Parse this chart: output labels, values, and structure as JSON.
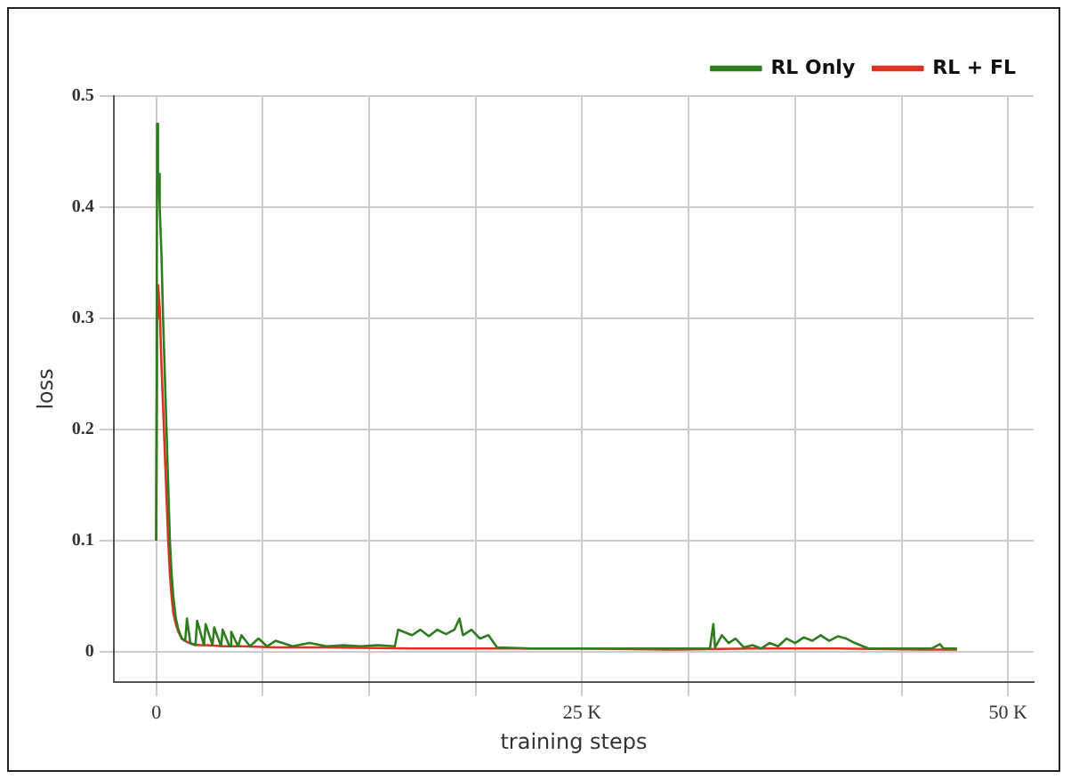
{
  "chart_data": {
    "type": "line",
    "xlabel": "training steps",
    "ylabel": "loss",
    "xlim": [
      -2500,
      51500
    ],
    "ylim": [
      -0.027,
      0.5
    ],
    "xticks": [
      0,
      {
        "value": 6250,
        "label": null
      },
      {
        "value": 12500,
        "label": null
      },
      {
        "value": 18750,
        "label": null
      },
      {
        "value": 25000,
        "label": "25 K"
      },
      {
        "value": 31250,
        "label": null
      },
      {
        "value": 37500,
        "label": null
      },
      {
        "value": 43750,
        "label": null
      },
      {
        "value": 50000,
        "label": "50 K"
      }
    ],
    "yticks": [
      0,
      0.1,
      0.2,
      0.3,
      0.4,
      0.5
    ],
    "grid": true,
    "legend": "top right",
    "marker": "none",
    "line_style": "solid",
    "series": [
      {
        "name": "RL Only",
        "color": "#2e7d1e",
        "x": [
          0,
          50,
          100,
          150,
          200,
          300,
          400,
          500,
          600,
          700,
          800,
          900,
          1000,
          1150,
          1300,
          1500,
          1700,
          1800,
          2000,
          2300,
          2400,
          2800,
          2900,
          3300,
          3400,
          3800,
          3900,
          4300,
          4400,
          4800,
          5000,
          5500,
          6000,
          6500,
          7000,
          8000,
          9000,
          10000,
          11000,
          12000,
          13000,
          14000,
          14200,
          15000,
          15500,
          16000,
          16500,
          17000,
          17500,
          17800,
          18000,
          18500,
          19000,
          19500,
          20000,
          22000,
          25000,
          28000,
          31000,
          32500,
          32700,
          32800,
          33200,
          33600,
          34000,
          34500,
          35000,
          35500,
          36000,
          36500,
          37000,
          37500,
          38000,
          38500,
          39000,
          39500,
          40000,
          40500,
          41000,
          41800,
          42500,
          44000,
          45500,
          46000,
          46200,
          47000
        ],
        "values": [
          0.1,
          0.475,
          0.42,
          0.43,
          0.4,
          0.36,
          0.3,
          0.25,
          0.2,
          0.15,
          0.1,
          0.07,
          0.05,
          0.03,
          0.02,
          0.012,
          0.01,
          0.03,
          0.008,
          0.006,
          0.028,
          0.006,
          0.025,
          0.006,
          0.022,
          0.005,
          0.02,
          0.005,
          0.018,
          0.005,
          0.015,
          0.005,
          0.012,
          0.005,
          0.01,
          0.005,
          0.008,
          0.005,
          0.006,
          0.005,
          0.006,
          0.005,
          0.02,
          0.015,
          0.02,
          0.014,
          0.02,
          0.016,
          0.02,
          0.03,
          0.015,
          0.02,
          0.012,
          0.015,
          0.004,
          0.003,
          0.003,
          0.003,
          0.003,
          0.003,
          0.025,
          0.004,
          0.015,
          0.008,
          0.012,
          0.004,
          0.006,
          0.003,
          0.008,
          0.005,
          0.012,
          0.008,
          0.013,
          0.01,
          0.015,
          0.01,
          0.014,
          0.012,
          0.008,
          0.003,
          0.003,
          0.003,
          0.003,
          0.007,
          0.003,
          0.003
        ]
      },
      {
        "name": "RL + FL",
        "color": "#e03020",
        "x": [
          0,
          50,
          100,
          200,
          300,
          400,
          500,
          600,
          700,
          800,
          900,
          1000,
          1150,
          1300,
          1500,
          1800,
          2100,
          2500,
          3000,
          4000,
          5000,
          7000,
          10000,
          15000,
          20000,
          25000,
          30000,
          35000,
          40000,
          45000,
          47000
        ],
        "values": [
          0.1,
          0.3,
          0.33,
          0.31,
          0.26,
          0.22,
          0.18,
          0.14,
          0.1,
          0.07,
          0.05,
          0.035,
          0.025,
          0.018,
          0.012,
          0.009,
          0.007,
          0.006,
          0.006,
          0.005,
          0.005,
          0.004,
          0.004,
          0.003,
          0.003,
          0.003,
          0.002,
          0.003,
          0.003,
          0.002,
          0.002
        ]
      }
    ]
  }
}
